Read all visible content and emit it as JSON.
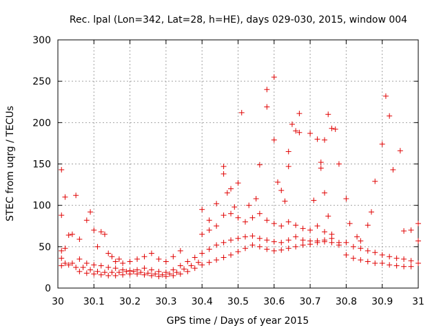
{
  "chart_data": {
    "type": "scatter",
    "title": "Rec. lpal (Lon=342, Lat=28, h=HE), days 029-030, 2015, window 004",
    "xlabel": "GPS time / Days of year 2015",
    "ylabel": "STEC from uqrg / TECUs",
    "xlim": [
      30,
      31
    ],
    "ylim": [
      0,
      300
    ],
    "xticks": [
      "30",
      "30.1",
      "30.2",
      "30.3",
      "30.4",
      "30.5",
      "30.6",
      "30.7",
      "30.8",
      "30.9",
      "31"
    ],
    "yticks": [
      "0",
      "50",
      "100",
      "150",
      "200",
      "250",
      "300"
    ],
    "grid": true,
    "marker": "+",
    "color": "#e00000",
    "series": [
      {
        "points": [
          [
            30.01,
            143
          ],
          [
            30.01,
            88
          ],
          [
            30.02,
            110
          ],
          [
            30.03,
            64
          ],
          [
            30.04,
            65
          ],
          [
            30.05,
            112
          ],
          [
            30.01,
            45
          ],
          [
            30.01,
            36
          ],
          [
            30.02,
            30
          ],
          [
            30.03,
            28
          ],
          [
            30.04,
            30
          ],
          [
            30.05,
            25
          ],
          [
            30.01,
            27
          ],
          [
            30.02,
            48
          ],
          [
            30.06,
            59
          ],
          [
            30.08,
            82
          ],
          [
            30.09,
            92
          ],
          [
            30.1,
            70
          ],
          [
            30.11,
            50
          ],
          [
            30.12,
            68
          ],
          [
            30.13,
            65
          ],
          [
            30.14,
            42
          ],
          [
            30.15,
            38
          ],
          [
            30.16,
            32
          ],
          [
            30.17,
            35
          ],
          [
            30.18,
            30
          ],
          [
            30.2,
            32
          ],
          [
            30.22,
            35
          ],
          [
            30.24,
            38
          ],
          [
            30.26,
            42
          ],
          [
            30.28,
            35
          ],
          [
            30.3,
            32
          ],
          [
            30.32,
            38
          ],
          [
            30.34,
            45
          ],
          [
            30.06,
            20
          ],
          [
            30.08,
            18
          ],
          [
            30.1,
            17
          ],
          [
            30.12,
            16
          ],
          [
            30.14,
            15
          ],
          [
            30.16,
            15
          ],
          [
            30.18,
            16
          ],
          [
            30.2,
            17
          ],
          [
            30.22,
            17
          ],
          [
            30.24,
            16
          ],
          [
            30.26,
            15
          ],
          [
            30.28,
            14
          ],
          [
            30.3,
            14
          ],
          [
            30.32,
            15
          ],
          [
            30.34,
            17
          ],
          [
            30.36,
            20
          ],
          [
            30.38,
            24
          ],
          [
            30.07,
            25
          ],
          [
            30.09,
            22
          ],
          [
            30.11,
            20
          ],
          [
            30.13,
            19
          ],
          [
            30.15,
            19
          ],
          [
            30.17,
            19
          ],
          [
            30.19,
            20
          ],
          [
            30.21,
            20
          ],
          [
            30.23,
            19
          ],
          [
            30.25,
            18
          ],
          [
            30.27,
            17
          ],
          [
            30.29,
            16
          ],
          [
            30.31,
            17
          ],
          [
            30.33,
            19
          ],
          [
            30.35,
            23
          ],
          [
            30.37,
            27
          ],
          [
            30.39,
            31
          ],
          [
            30.06,
            35
          ],
          [
            30.08,
            30
          ],
          [
            30.1,
            28
          ],
          [
            30.12,
            27
          ],
          [
            30.14,
            25
          ],
          [
            30.16,
            24
          ],
          [
            30.18,
            22
          ],
          [
            30.2,
            21
          ],
          [
            30.22,
            22
          ],
          [
            30.24,
            24
          ],
          [
            30.26,
            22
          ],
          [
            30.28,
            20
          ],
          [
            30.3,
            19
          ],
          [
            30.32,
            22
          ],
          [
            30.34,
            27
          ],
          [
            30.36,
            32
          ],
          [
            30.38,
            37
          ],
          [
            30.4,
            95
          ],
          [
            30.42,
            82
          ],
          [
            30.44,
            102
          ],
          [
            30.46,
            147
          ],
          [
            30.46,
            138
          ],
          [
            30.47,
            115
          ],
          [
            30.48,
            120
          ],
          [
            30.49,
            98
          ],
          [
            30.5,
            127
          ],
          [
            30.51,
            212
          ],
          [
            30.53,
            100
          ],
          [
            30.55,
            108
          ],
          [
            30.56,
            149
          ],
          [
            30.58,
            240
          ],
          [
            30.58,
            219
          ],
          [
            30.6,
            255
          ],
          [
            30.6,
            179
          ],
          [
            30.61,
            128
          ],
          [
            30.62,
            118
          ],
          [
            30.63,
            105
          ],
          [
            30.4,
            65
          ],
          [
            30.42,
            70
          ],
          [
            30.44,
            75
          ],
          [
            30.46,
            88
          ],
          [
            30.48,
            90
          ],
          [
            30.5,
            85
          ],
          [
            30.52,
            80
          ],
          [
            30.54,
            85
          ],
          [
            30.56,
            90
          ],
          [
            30.58,
            82
          ],
          [
            30.6,
            78
          ],
          [
            30.62,
            75
          ],
          [
            30.4,
            42
          ],
          [
            30.42,
            47
          ],
          [
            30.44,
            52
          ],
          [
            30.46,
            55
          ],
          [
            30.48,
            58
          ],
          [
            30.5,
            60
          ],
          [
            30.52,
            62
          ],
          [
            30.54,
            63
          ],
          [
            30.56,
            60
          ],
          [
            30.58,
            58
          ],
          [
            30.6,
            56
          ],
          [
            30.62,
            55
          ],
          [
            30.4,
            28
          ],
          [
            30.42,
            31
          ],
          [
            30.44,
            34
          ],
          [
            30.46,
            37
          ],
          [
            30.48,
            40
          ],
          [
            30.5,
            44
          ],
          [
            30.52,
            48
          ],
          [
            30.54,
            52
          ],
          [
            30.56,
            50
          ],
          [
            30.58,
            47
          ],
          [
            30.6,
            45
          ],
          [
            30.62,
            46
          ],
          [
            30.64,
            165
          ],
          [
            30.64,
            147
          ],
          [
            30.65,
            198
          ],
          [
            30.66,
            190
          ],
          [
            30.67,
            211
          ],
          [
            30.67,
            188
          ],
          [
            30.7,
            187
          ],
          [
            30.72,
            180
          ],
          [
            30.73,
            152
          ],
          [
            30.73,
            145
          ],
          [
            30.74,
            179
          ],
          [
            30.75,
            210
          ],
          [
            30.76,
            193
          ],
          [
            30.77,
            192
          ],
          [
            30.74,
            115
          ],
          [
            30.71,
            106
          ],
          [
            30.78,
            150
          ],
          [
            30.8,
            108
          ],
          [
            30.64,
            80
          ],
          [
            30.66,
            76
          ],
          [
            30.68,
            72
          ],
          [
            30.7,
            70
          ],
          [
            30.72,
            75
          ],
          [
            30.74,
            68
          ],
          [
            30.76,
            65
          ],
          [
            30.75,
            87
          ],
          [
            30.64,
            58
          ],
          [
            30.66,
            62
          ],
          [
            30.68,
            58
          ],
          [
            30.7,
            57
          ],
          [
            30.72,
            57
          ],
          [
            30.74,
            56
          ],
          [
            30.76,
            60
          ],
          [
            30.78,
            55
          ],
          [
            30.64,
            48
          ],
          [
            30.66,
            50
          ],
          [
            30.68,
            52
          ],
          [
            30.7,
            53
          ],
          [
            30.72,
            55
          ],
          [
            30.74,
            58
          ],
          [
            30.76,
            55
          ],
          [
            30.78,
            52
          ],
          [
            30.81,
            78
          ],
          [
            30.83,
            62
          ],
          [
            30.84,
            57
          ],
          [
            30.86,
            76
          ],
          [
            30.87,
            92
          ],
          [
            30.88,
            129
          ],
          [
            30.9,
            174
          ],
          [
            30.91,
            232
          ],
          [
            30.92,
            208
          ],
          [
            30.93,
            143
          ],
          [
            30.95,
            166
          ],
          [
            30.96,
            69
          ],
          [
            30.98,
            70
          ],
          [
            31.0,
            78
          ],
          [
            31.0,
            57
          ],
          [
            30.8,
            55
          ],
          [
            30.82,
            50
          ],
          [
            30.84,
            48
          ],
          [
            30.86,
            45
          ],
          [
            30.88,
            43
          ],
          [
            30.9,
            40
          ],
          [
            30.92,
            38
          ],
          [
            30.94,
            36
          ],
          [
            30.96,
            35
          ],
          [
            30.98,
            33
          ],
          [
            30.8,
            40
          ],
          [
            30.82,
            36
          ],
          [
            30.84,
            34
          ],
          [
            30.86,
            32
          ],
          [
            30.88,
            30
          ],
          [
            30.9,
            30
          ],
          [
            30.92,
            28
          ],
          [
            30.94,
            27
          ],
          [
            30.96,
            26
          ],
          [
            30.98,
            26
          ],
          [
            31.0,
            30
          ]
        ]
      }
    ]
  }
}
